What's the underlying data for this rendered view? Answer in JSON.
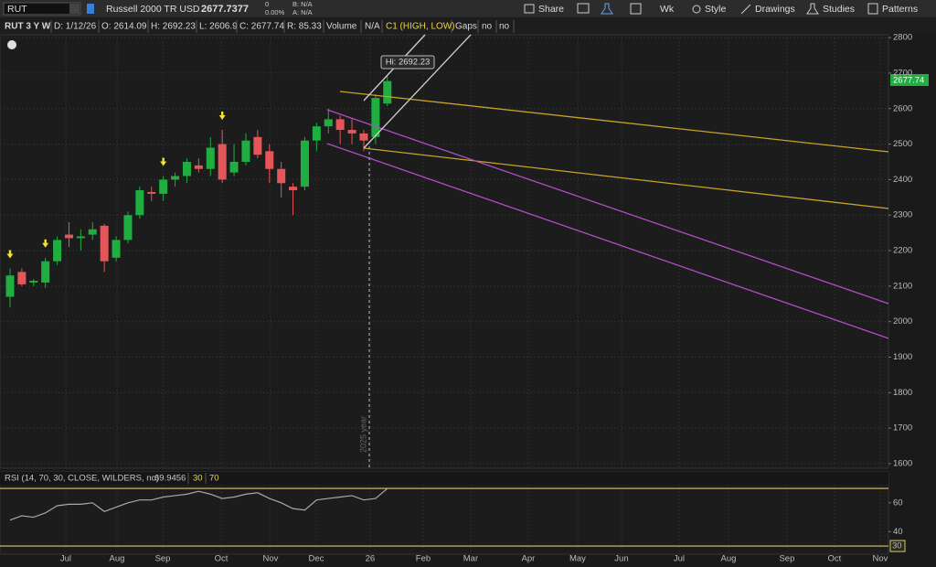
{
  "toolbar": {
    "symbol": "RUT",
    "description": "Russell 2000 TR USD",
    "last": "2677.7377",
    "change": "0",
    "change_pct": "0.00%",
    "bid": "B: N/A",
    "ask": "A: N/A",
    "share": "Share",
    "period": "Wk",
    "style": "Style",
    "drawings": "Drawings",
    "studies": "Studies",
    "patterns": "Patterns"
  },
  "header": {
    "chart": "RUT 3 Y W",
    "date": "D: 1/12/26",
    "open": "O: 2614.09",
    "high": "H: 2692.23",
    "low": "L: 2606.9",
    "close": "C: 2677.74",
    "range": "R: 85.33",
    "volume": "Volume",
    "volume_value": "N/A",
    "study": "C1 (HIGH, LOW)",
    "gaps": "Gaps",
    "gaps_value": "no",
    "extra_value": "no"
  },
  "annotations": {
    "hi": "Hi: 2692.23",
    "price": "2677.74",
    "year": "2025 year"
  },
  "chart_data": [
    {
      "type": "candlestick",
      "x": [
        0,
        1,
        2,
        3,
        4,
        5,
        6,
        7,
        8,
        9,
        10,
        11,
        12,
        13,
        14,
        15,
        16,
        17,
        18,
        19,
        20,
        21,
        22,
        23,
        24,
        25,
        26,
        27,
        28,
        29,
        30,
        31,
        32
      ],
      "open": [
        2070,
        2140,
        2110,
        2110,
        2170,
        2245,
        2235,
        2245,
        2270,
        2180,
        2230,
        2300,
        2365,
        2360,
        2400,
        2410,
        2440,
        2430,
        2500,
        2420,
        2450,
        2520,
        2480,
        2430,
        2380,
        2380,
        2510,
        2550,
        2570,
        2540,
        2530,
        2520,
        2614.09
      ],
      "high": [
        2150,
        2150,
        2120,
        2180,
        2240,
        2280,
        2260,
        2280,
        2275,
        2240,
        2310,
        2380,
        2380,
        2410,
        2420,
        2460,
        2460,
        2520,
        2540,
        2500,
        2530,
        2540,
        2500,
        2450,
        2390,
        2520,
        2560,
        2600,
        2580,
        2570,
        2540,
        2640,
        2692.23
      ],
      "low": [
        2040,
        2100,
        2100,
        2095,
        2160,
        2210,
        2200,
        2230,
        2140,
        2170,
        2220,
        2290,
        2340,
        2340,
        2380,
        2390,
        2420,
        2410,
        2390,
        2410,
        2440,
        2460,
        2390,
        2350,
        2300,
        2370,
        2480,
        2530,
        2500,
        2500,
        2480,
        2500,
        2606.9
      ],
      "close": [
        2130,
        2105,
        2115,
        2170,
        2230,
        2235,
        2240,
        2260,
        2170,
        2230,
        2300,
        2370,
        2360,
        2400,
        2410,
        2450,
        2430,
        2490,
        2400,
        2450,
        2510,
        2470,
        2430,
        2390,
        2370,
        2510,
        2550,
        2570,
        2540,
        2530,
        2510,
        2630,
        2677.74
      ],
      "up_color": "#1fae3f",
      "down_color": "#e5565a",
      "signals": [
        0,
        3,
        13,
        18
      ],
      "signal_color": "#f5e22e",
      "xlim": [
        -0.85,
        74.5
      ],
      "xticks": [
        {
          "value": 4.73,
          "label": "Jul"
        },
        {
          "value": 9.07,
          "label": "Aug"
        },
        {
          "value": 12.95,
          "label": "Sep"
        },
        {
          "value": 17.91,
          "label": "Oct"
        },
        {
          "value": 22.09,
          "label": "Nov"
        },
        {
          "value": 25.97,
          "label": "Dec"
        },
        {
          "value": 30.54,
          "label": "26"
        },
        {
          "value": 35.04,
          "label": "Feb"
        },
        {
          "value": 39.07,
          "label": "Mar"
        },
        {
          "value": 43.95,
          "label": "Apr"
        },
        {
          "value": 48.14,
          "label": "May"
        },
        {
          "value": 51.86,
          "label": "Jun"
        },
        {
          "value": 56.74,
          "label": "Jul"
        },
        {
          "value": 60.93,
          "label": "Aug"
        },
        {
          "value": 65.89,
          "label": "Sep"
        },
        {
          "value": 69.92,
          "label": "Oct"
        },
        {
          "value": 73.8,
          "label": "Nov"
        }
      ],
      "ylim": [
        1587,
        2808
      ],
      "yticks": [
        1600,
        1700,
        1800,
        1900,
        2000,
        2100,
        2200,
        2300,
        2400,
        2500,
        2600,
        2700,
        2800
      ],
      "grid": true
    },
    {
      "type": "line",
      "title": "RSI (14, 70, 30, CLOSE, WILDERS, no)",
      "last_value": "69.9456",
      "x": [
        0,
        1,
        2,
        3,
        4,
        5,
        6,
        7,
        8,
        9,
        10,
        11,
        12,
        13,
        14,
        15,
        16,
        17,
        18,
        19,
        20,
        21,
        22,
        23,
        24,
        25,
        26,
        27,
        28,
        29,
        30,
        31,
        32
      ],
      "values": [
        48,
        51,
        50,
        53,
        58,
        59,
        59,
        60,
        54,
        57,
        60,
        62,
        62,
        64,
        65,
        66,
        68,
        66,
        63,
        64,
        66,
        67,
        63,
        60,
        56,
        55,
        62,
        63,
        64,
        65,
        62,
        63,
        69.9456
      ],
      "color": "#a8a8a8",
      "levels": [
        30,
        70
      ],
      "level_color": "#d8c96a",
      "ylim": [
        25.6,
        80.2
      ],
      "yticks": [
        40,
        60
      ]
    }
  ]
}
